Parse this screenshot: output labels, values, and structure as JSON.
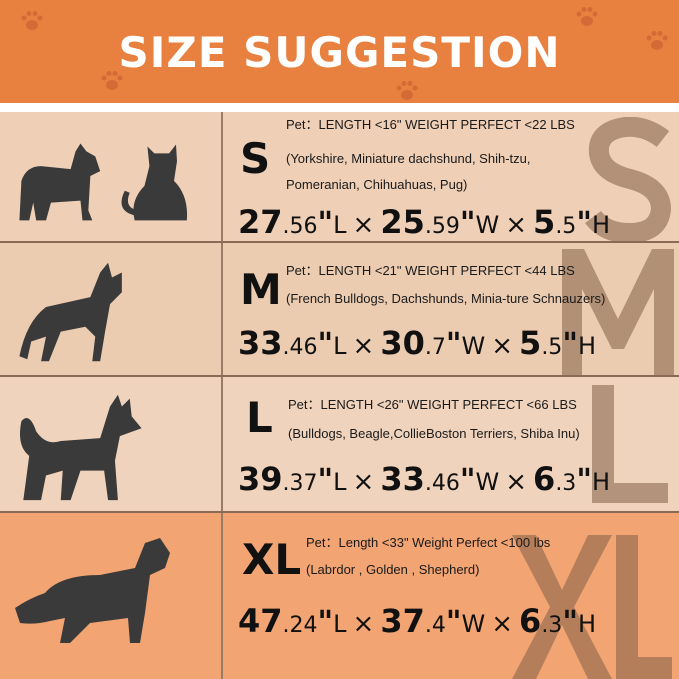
{
  "header": {
    "title": "SIZE SUGGESTION",
    "background": "#e8803f"
  },
  "rows": [
    {
      "size": "S",
      "bg": "#efcfb6",
      "line1": "Pet：LENGTH <16\"  WEIGHT PERFECT <22 LBS",
      "line2": "(Yorkshire, Miniature dachshund, Shih-tzu,",
      "line3": "Pomeranian, Chihuahuas, Pug)",
      "dims": [
        {
          "int": "27",
          "dec": ".56",
          "unit": "L"
        },
        {
          "int": "25",
          "dec": ".59",
          "unit": "W"
        },
        {
          "int": "5",
          "dec": ".5",
          "unit": "H"
        }
      ],
      "pets": [
        "terrier-silhouette",
        "cat-silhouette"
      ]
    },
    {
      "size": "M",
      "bg": "#ecccb1",
      "line1": "Pet：LENGTH <21\"  WEIGHT PERFECT <44 LBS",
      "line2": "(French Bulldogs, Dachshunds, Minia-ture Schnauzers)",
      "dims": [
        {
          "int": "33",
          "dec": ".46",
          "unit": "L"
        },
        {
          "int": "30",
          "dec": ".7",
          "unit": "W"
        },
        {
          "int": "5",
          "dec": ".5",
          "unit": "H"
        }
      ],
      "pets": [
        "french-bulldog-silhouette"
      ]
    },
    {
      "size": "L",
      "bg": "#f0d3bc",
      "line1": "Pet：LENGTH <26\" WEIGHT PERFECT <66 LBS",
      "line2": "(Bulldogs, Beagle,CollieBoston Terriers, Shiba Inu)",
      "dims": [
        {
          "int": "39",
          "dec": ".37",
          "unit": "L"
        },
        {
          "int": "33",
          "dec": ".46",
          "unit": "W"
        },
        {
          "int": "6",
          "dec": ".3",
          "unit": "H"
        }
      ],
      "pets": [
        "shiba-silhouette"
      ]
    },
    {
      "size": "XL",
      "bg": "#f2a473",
      "line1": "Pet：Length <33\"  Weight Perfect <100 lbs",
      "line2": "(Labrdor , Golden , Shepherd)",
      "dims": [
        {
          "int": "47",
          "dec": ".24",
          "unit": "L"
        },
        {
          "int": "37",
          "dec": ".4",
          "unit": "W"
        },
        {
          "int": "6",
          "dec": ".3",
          "unit": "H"
        }
      ],
      "pets": [
        "golden-retriever-silhouette"
      ]
    }
  ],
  "quote": "\"",
  "times": "×"
}
